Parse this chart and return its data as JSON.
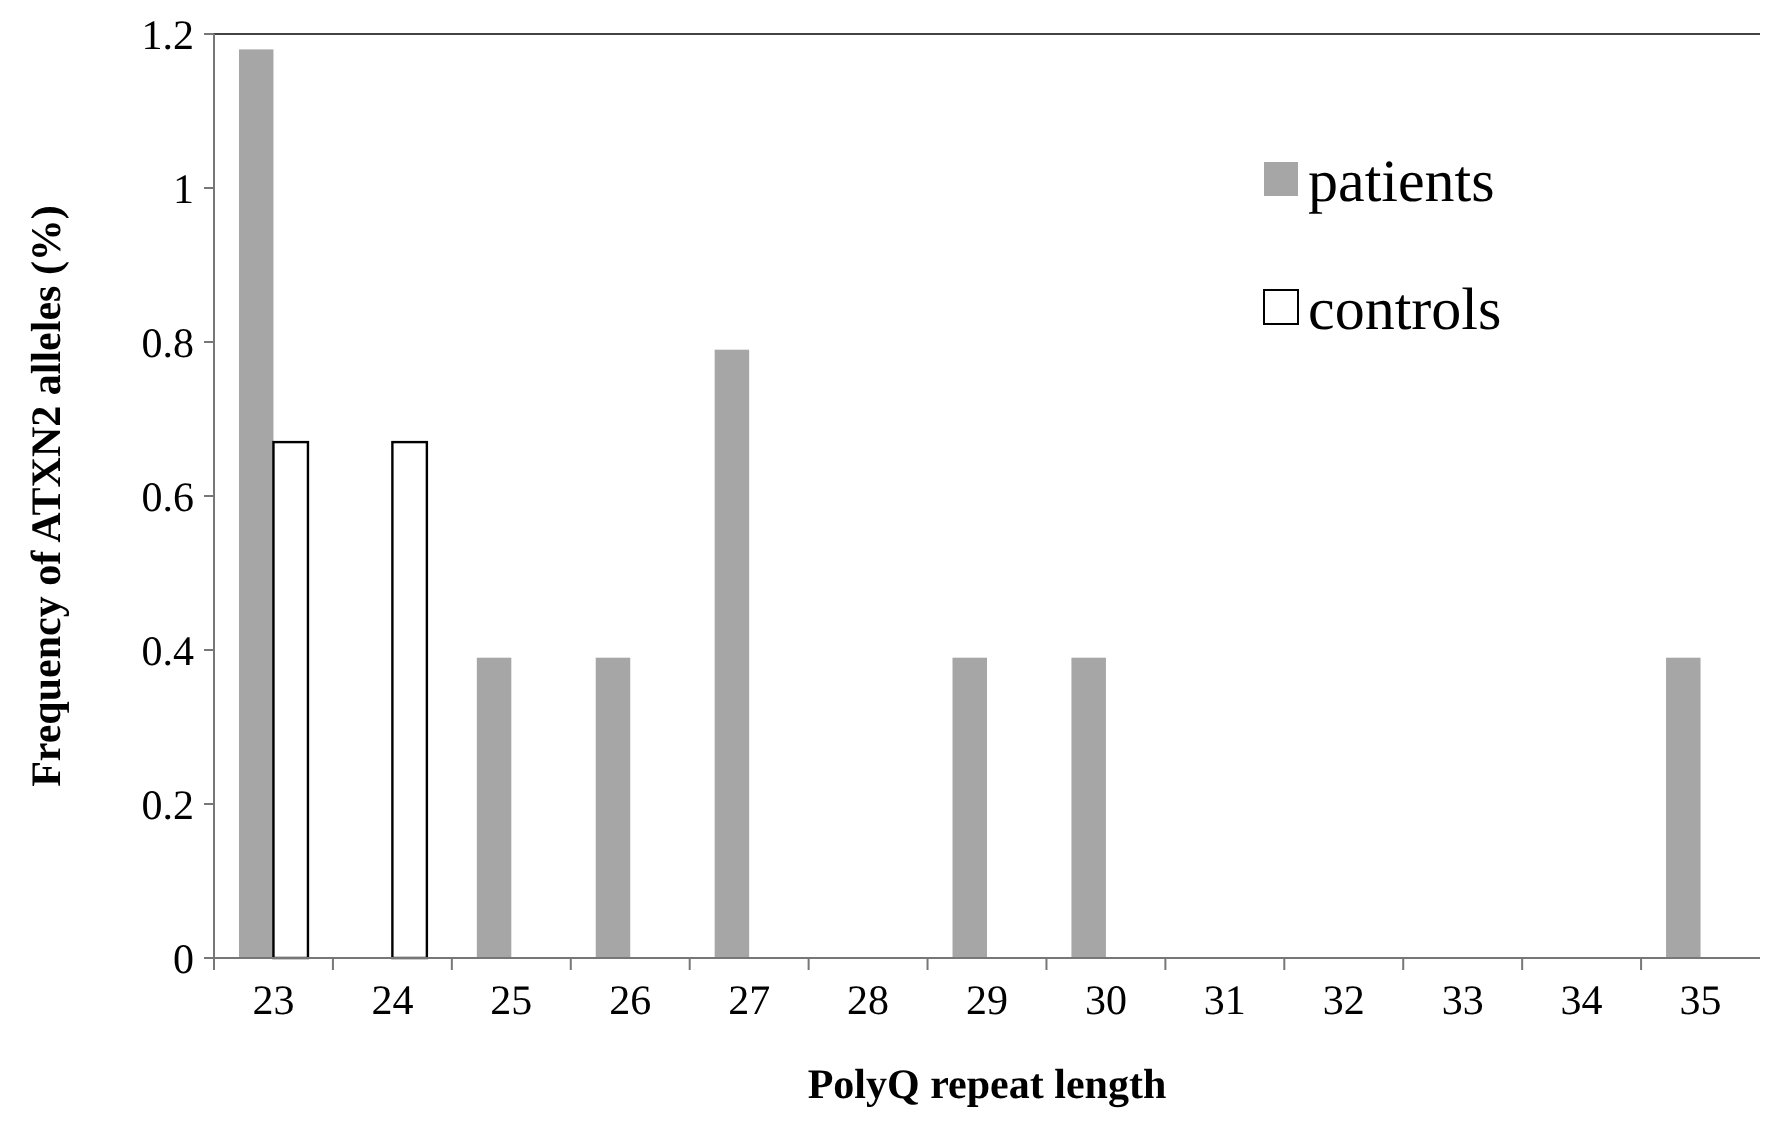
{
  "chart_data": {
    "type": "bar",
    "xlabel": "PolyQ repeat length",
    "ylabel": "Frequency of ATXN2 alleles (%)",
    "categories": [
      "23",
      "24",
      "25",
      "26",
      "27",
      "28",
      "29",
      "30",
      "31",
      "32",
      "33",
      "34",
      "35"
    ],
    "series": [
      {
        "name": "patients",
        "color": "#a6a6a6",
        "values": [
          1.18,
          0,
          0.39,
          0.39,
          0.79,
          0,
          0.39,
          0.39,
          0,
          0,
          0,
          0,
          0.39
        ]
      },
      {
        "name": "controls",
        "color": "#ffffff",
        "values": [
          0.67,
          0.67,
          0,
          0,
          0,
          0,
          0,
          0,
          0,
          0,
          0,
          0,
          0
        ]
      }
    ],
    "ylim": [
      0,
      1.2
    ],
    "yticks": [
      0,
      0.2,
      0.4,
      0.6,
      0.8,
      1,
      1.2
    ],
    "grid": false,
    "legend": "top right"
  }
}
